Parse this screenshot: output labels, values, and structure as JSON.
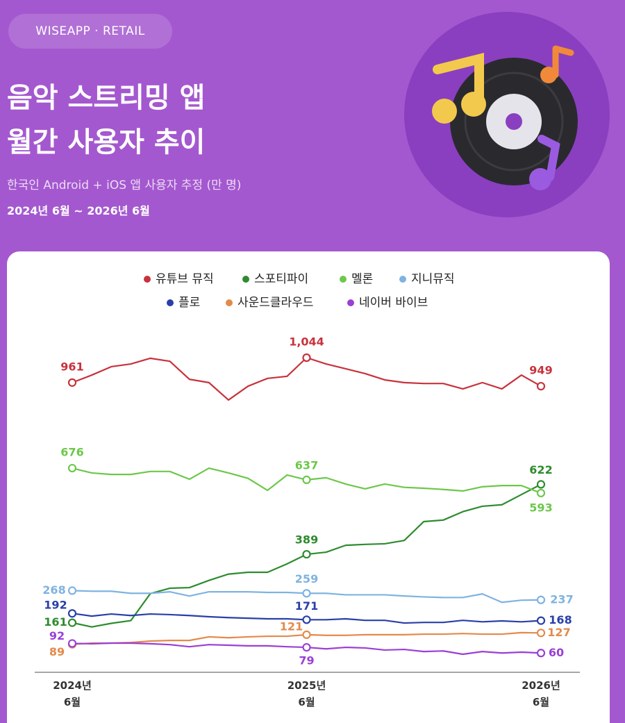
{
  "header": {
    "brand": "WISEAPP · RETAIL",
    "title_line1": "음악 스트리밍 앱",
    "title_line2": "월간 사용자 추이",
    "subtitle": "한국인 Android + iOS 앱 사용자 추정 (만 명)",
    "period": "2024년 6월 ~ 2026년 6월"
  },
  "chart_data": {
    "type": "line",
    "categories": [
      "2024년\n6월",
      null,
      null,
      null,
      null,
      null,
      null,
      null,
      null,
      null,
      null,
      null,
      "2025년\n6월",
      null,
      null,
      null,
      null,
      null,
      null,
      null,
      null,
      null,
      null,
      null,
      "2026년\n6월"
    ],
    "series": [
      {
        "name": "유튜브 뮤직",
        "color": "#c8323c",
        "values": [
          961,
          986,
          1014,
          1023,
          1042,
          1032,
          972,
          961,
          903,
          949,
          975,
          982,
          1044,
          1023,
          1007,
          991,
          970,
          961,
          958,
          958,
          940,
          961,
          940,
          986,
          949
        ],
        "value_labels": [
          "961",
          null,
          null,
          null,
          null,
          null,
          null,
          null,
          null,
          null,
          null,
          null,
          "1,044",
          null,
          null,
          null,
          null,
          null,
          null,
          null,
          null,
          null,
          null,
          null,
          "949"
        ]
      },
      {
        "name": "스포티파이",
        "color": "#2e8b2e",
        "values": [
          161,
          147,
          159,
          168,
          258,
          276,
          278,
          302,
          323,
          329,
          329,
          357,
          389,
          396,
          419,
          422,
          424,
          435,
          498,
          503,
          531,
          549,
          554,
          588,
          622
        ]
      },
      {
        "name": "멜론",
        "color": "#6cc84a",
        "values": [
          676,
          660,
          655,
          655,
          665,
          665,
          639,
          676,
          660,
          642,
          602,
          653,
          637,
          644,
          623,
          607,
          623,
          612,
          609,
          605,
          600,
          614,
          618,
          618,
          593
        ]
      },
      {
        "name": "지니뮤직",
        "color": "#7fb3e0",
        "values": [
          268,
          266,
          266,
          259,
          259,
          264,
          250,
          264,
          264,
          264,
          262,
          262,
          259,
          259,
          254,
          254,
          254,
          250,
          247,
          245,
          245,
          257,
          229,
          236,
          237
        ]
      },
      {
        "name": "플로",
        "color": "#2a3fa8",
        "values": [
          192,
          183,
          190,
          185,
          190,
          188,
          185,
          181,
          178,
          176,
          174,
          174,
          171,
          171,
          174,
          169,
          169,
          160,
          162,
          162,
          169,
          164,
          167,
          164,
          168
        ]
      },
      {
        "name": "사운드클라우드",
        "color": "#e38a4a",
        "values": [
          89,
          93,
          93,
          95,
          100,
          102,
          102,
          114,
          111,
          114,
          116,
          116,
          121,
          119,
          119,
          121,
          121,
          121,
          123,
          123,
          125,
          123,
          123,
          128,
          127
        ]
      },
      {
        "name": "네이버 바이브",
        "color": "#9a3fd6",
        "values": [
          92,
          91,
          93,
          93,
          91,
          88,
          81,
          88,
          86,
          84,
          84,
          81,
          79,
          74,
          79,
          77,
          70,
          72,
          65,
          67,
          56,
          65,
          60,
          63,
          60
        ]
      }
    ]
  }
}
